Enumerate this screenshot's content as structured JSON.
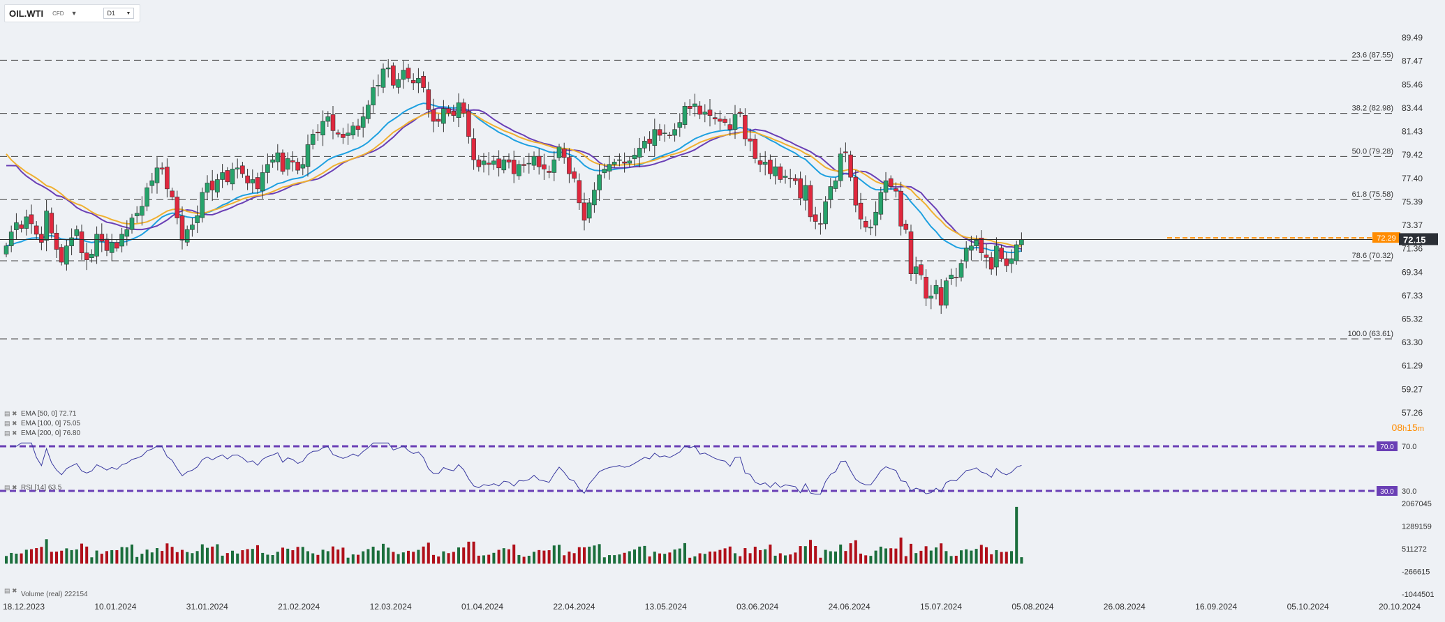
{
  "header": {
    "symbol": "OIL.WTI",
    "instrument_type": "CFD",
    "timeframe": "D1"
  },
  "colors": {
    "bull": "#26a36b",
    "bear": "#e0283e",
    "ema50": "#1ea0e0",
    "ema100": "#6a3fb5",
    "ema200": "#f0b030",
    "rsi_line": "#3a3aa0",
    "rsi_level": "#6a3fb5",
    "vol_up": "#1b6e3c",
    "vol_down": "#b0101a",
    "current_price_line": "#2a2a2a",
    "bid_line": "#ff8c00",
    "countdown": "#ff8c00"
  },
  "countdown": {
    "hours": "08",
    "h": "h",
    "minutes": "15",
    "m": "m"
  },
  "chart_data": [
    {
      "name": "price",
      "type": "candlestick",
      "y_ticks": [
        "89.49",
        "87.47",
        "85.46",
        "83.44",
        "81.43",
        "79.42",
        "77.40",
        "75.39",
        "73.37",
        "71.36",
        "69.34",
        "67.33",
        "65.32",
        "63.30",
        "61.29",
        "59.27",
        "57.26"
      ],
      "ylim": [
        57.26,
        89.49
      ],
      "x_ticks": [
        "18.12.2023",
        "10.01.2024",
        "31.01.2024",
        "21.02.2024",
        "12.03.2024",
        "01.04.2024",
        "22.04.2024",
        "13.05.2024",
        "03.06.2024",
        "24.06.2024",
        "15.07.2024",
        "05.08.2024",
        "26.08.2024",
        "16.09.2024",
        "05.10.2024",
        "20.10.2024"
      ],
      "fib_levels": [
        {
          "label": "23.6 (87.55)",
          "value": 87.55
        },
        {
          "label": "38.2 (82.98)",
          "value": 82.98
        },
        {
          "label": "50.0 (79.28)",
          "value": 79.28
        },
        {
          "label": "61.8 (75.58)",
          "value": 75.58
        },
        {
          "label": "78.6 (70.32)",
          "value": 70.32
        },
        {
          "label": "100.0 (63.61)",
          "value": 63.61
        }
      ],
      "current_price": "72.15",
      "bid_price": "72.29",
      "candle_closes": [
        71.6,
        72.8,
        73.6,
        73.1,
        74.1,
        73.5,
        72.6,
        71.9,
        74.6,
        72.7,
        71.3,
        70.2,
        71.6,
        72.3,
        73.0,
        71.0,
        70.4,
        70.9,
        72.6,
        72.0,
        71.2,
        71.9,
        71.4,
        72.6,
        73.0,
        74.0,
        74.4,
        75.0,
        76.6,
        77.2,
        78.3,
        78.2,
        76.5,
        75.8,
        74.0,
        72.1,
        73.0,
        73.4,
        74.2,
        76.2,
        77.0,
        76.4,
        77.3,
        77.9,
        77.1,
        78.2,
        78.3,
        77.8,
        77.0,
        77.3,
        76.5,
        77.9,
        78.6,
        79.0,
        79.6,
        78.0,
        79.1,
        78.8,
        78.1,
        78.6,
        80.3,
        81.2,
        81.3,
        82.3,
        82.7,
        81.5,
        81.2,
        80.9,
        81.3,
        81.9,
        81.6,
        82.7,
        83.7,
        85.2,
        85.4,
        86.8,
        86.9,
        85.4,
        85.9,
        86.7,
        86.0,
        85.6,
        86.0,
        85.2,
        83.3,
        82.3,
        82.3,
        83.4,
        83.0,
        82.8,
        83.9,
        83.0,
        81.0,
        79.0,
        78.4,
        78.9,
        78.6,
        78.9,
        78.3,
        79.0,
        78.8,
        77.8,
        78.6,
        78.5,
        78.7,
        79.3,
        78.4,
        78.2,
        77.9,
        79.0,
        80.1,
        79.2,
        77.8,
        77.4,
        75.3,
        73.8,
        75.3,
        76.4,
        77.7,
        78.2,
        78.6,
        78.8,
        79.0,
        78.7,
        78.9,
        79.4,
        80.0,
        80.6,
        80.4,
        81.6,
        81.1,
        81.3,
        81.1,
        81.6,
        82.2,
        83.6,
        83.4,
        83.8,
        82.9,
        83.1,
        82.8,
        82.5,
        82.3,
        82.2,
        81.6,
        82.9,
        83.0,
        80.8,
        80.6,
        79.1,
        78.6,
        78.8,
        77.8,
        78.4,
        77.3,
        77.6,
        77.4,
        77.2,
        75.7,
        76.8,
        74.1,
        73.7,
        73.5,
        75.4,
        76.7,
        77.2,
        79.5,
        79.6,
        77.5,
        75.1,
        73.9,
        73.2,
        73.2,
        74.5,
        76.2,
        77.2,
        76.7,
        76.3,
        73.3,
        73.0,
        69.2,
        69.8,
        69.1,
        67.1,
        67.3,
        68.2,
        66.5,
        68.6,
        69.1,
        68.9,
        70.1,
        71.4,
        71.6,
        72.1,
        71.0,
        70.6,
        69.6,
        71.6,
        70.5,
        69.9,
        70.5,
        71.7,
        72.15
      ]
    },
    {
      "name": "indicator_legend",
      "type": "legend",
      "entries": [
        {
          "label": "EMA [50, 0]",
          "value": "72.71",
          "color": "#1ea0e0"
        },
        {
          "label": "EMA [100, 0]",
          "value": "75.05",
          "color": "#6a3fb5"
        },
        {
          "label": "EMA [200, 0]",
          "value": "76.80",
          "color": "#f0b030"
        }
      ]
    },
    {
      "name": "rsi",
      "type": "line",
      "legend_label": "RSI [14]",
      "legend_value": "63.5",
      "levels": [
        "70.0",
        "30.0"
      ],
      "ylim": [
        25,
        75
      ]
    },
    {
      "name": "volume",
      "type": "bar",
      "legend_label": "Volume",
      "legend_mode": "(real)",
      "legend_value": "222154",
      "y_ticks": [
        "2067045",
        "1289159",
        "511272",
        "-266615",
        "-1044501"
      ],
      "ylim": [
        -1044501,
        2067045
      ]
    }
  ]
}
